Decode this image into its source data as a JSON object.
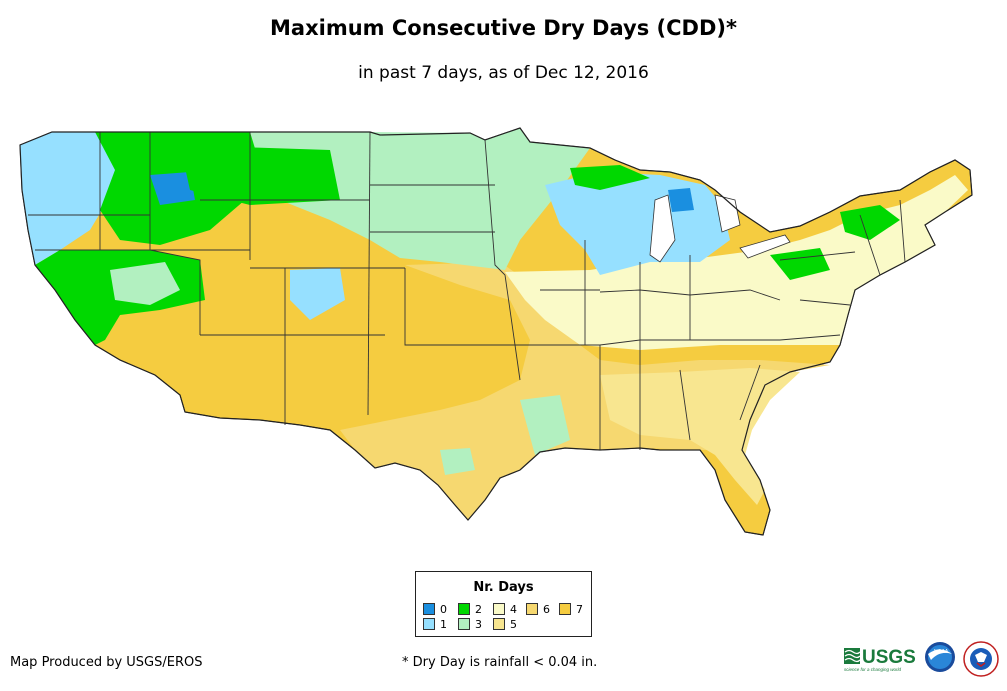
{
  "title": "Maximum Consecutive Dry Days (CDD)*",
  "subtitle": "in past 7 days, as of Dec 12, 2016",
  "legend": {
    "title": "Nr. Days",
    "items": [
      {
        "label": "0",
        "color": "#1a8fe0"
      },
      {
        "label": "1",
        "color": "#96e0ff"
      },
      {
        "label": "2",
        "color": "#00d800"
      },
      {
        "label": "3",
        "color": "#b2f0c0"
      },
      {
        "label": "4",
        "color": "#fafac8"
      },
      {
        "label": "5",
        "color": "#f8e690"
      },
      {
        "label": "6",
        "color": "#f6d870"
      },
      {
        "label": "7",
        "color": "#f5cc40"
      }
    ]
  },
  "credit": "Map Produced by USGS/EROS",
  "footnote": "* Dry Day is rainfall < 0.04 in.",
  "logos": {
    "usgs": "USGS",
    "usgs_tagline": "science for a changing world",
    "noaa": "NOAA"
  }
}
